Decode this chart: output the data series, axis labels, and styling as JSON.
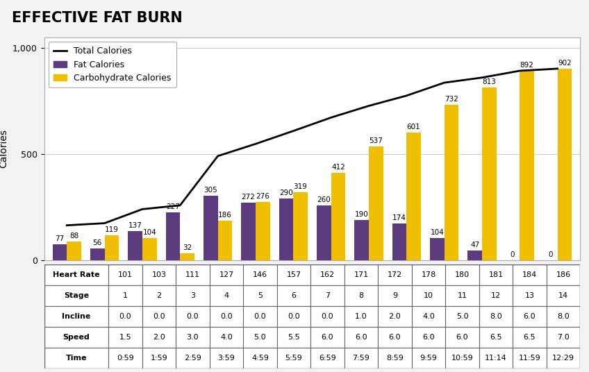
{
  "title": "EFFECTIVE FAT BURN",
  "stages": [
    1,
    2,
    3,
    4,
    5,
    6,
    7,
    8,
    9,
    10,
    11,
    12,
    13,
    14
  ],
  "fat_calories": [
    77,
    56,
    137,
    227,
    305,
    272,
    290,
    260,
    190,
    174,
    104,
    47,
    0,
    0
  ],
  "carb_calories": [
    88,
    119,
    104,
    32,
    186,
    276,
    319,
    412,
    537,
    601,
    732,
    813,
    892,
    902
  ],
  "total_calories": [
    165,
    175,
    241,
    259,
    491,
    548,
    609,
    672,
    727,
    775,
    836,
    860,
    892,
    902
  ],
  "heart_rate": [
    101,
    103,
    111,
    127,
    146,
    157,
    162,
    171,
    172,
    178,
    180,
    181,
    184,
    186
  ],
  "stage_labels": [
    "1",
    "2",
    "3",
    "4",
    "5",
    "6",
    "7",
    "8",
    "9",
    "10",
    "11",
    "12",
    "13",
    "14"
  ],
  "incline": [
    "0.0",
    "0.0",
    "0.0",
    "0.0",
    "0.0",
    "0.0",
    "0.0",
    "1.0",
    "2.0",
    "4.0",
    "5.0",
    "8.0",
    "6.0",
    "8.0"
  ],
  "speed": [
    "1.5",
    "2.0",
    "3.0",
    "4.0",
    "5.0",
    "5.5",
    "6.0",
    "6.0",
    "6.0",
    "6.0",
    "6.0",
    "6.5",
    "6.5",
    "7.0"
  ],
  "time": [
    "0:59",
    "1:59",
    "2:59",
    "3:59",
    "4:59",
    "5:59",
    "6:59",
    "7:59",
    "8:59",
    "9:59",
    "10:59",
    "11:14",
    "11:59",
    "12:29"
  ],
  "fat_color": "#5b3a7e",
  "carb_color": "#f0c000",
  "line_color": "#000000",
  "bar_width": 0.38,
  "ylim": [
    0,
    1050
  ],
  "yticks": [
    0,
    500,
    1000
  ],
  "ylabel": "Calories",
  "background_color": "#f2f2f2",
  "chart_bg": "#ffffff",
  "row_labels": [
    "Heart Rate",
    "Stage",
    "Incline",
    "Speed",
    "Time"
  ],
  "title_fontsize": 15,
  "legend_fontsize": 9,
  "label_fontsize": 7.5,
  "table_fontsize": 8
}
